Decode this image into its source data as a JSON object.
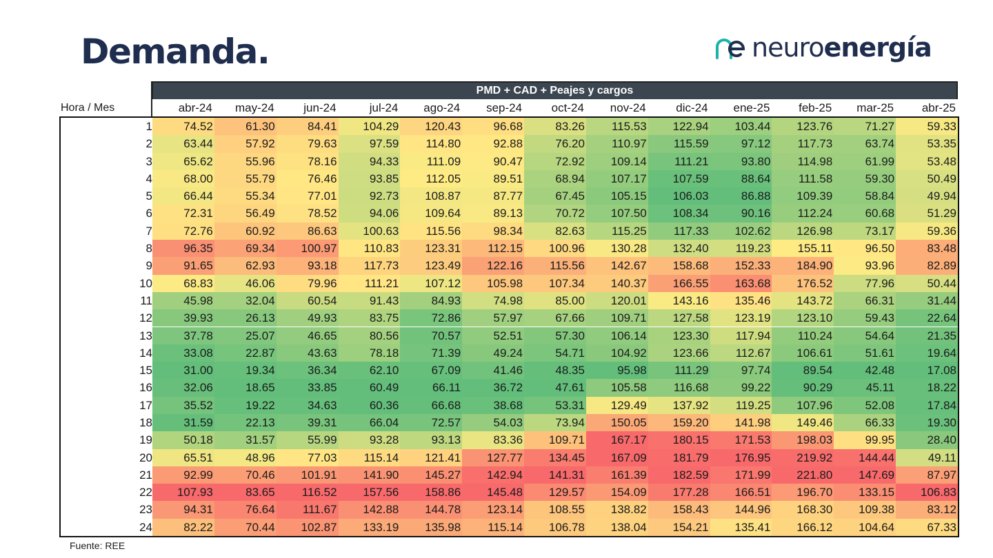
{
  "title": "Demanda.",
  "logo": {
    "text_light": "neuro",
    "text_bold": "energía",
    "icon": "neuroenergia-ne-logo-icon"
  },
  "header_band": "PMD + CAD + Peajes y cargos",
  "corner_label": "Hora / Mes",
  "source": "Fuente: REE",
  "colors": {
    "green": "#63be7b",
    "yellow": "#ffeb84",
    "red": "#f8696b",
    "band": "#3b4650",
    "title": "#1f2d4e",
    "logo_accent": "#1bb3a8"
  },
  "chart_data": {
    "type": "heatmap",
    "title": "PMD + CAD + Peajes y cargos",
    "xlabel": "Mes",
    "ylabel": "Hora",
    "color_scale": "per-month column: low = green, mid = yellow, high = red",
    "months": [
      "abr-24",
      "may-24",
      "jun-24",
      "jul-24",
      "ago-24",
      "sep-24",
      "oct-24",
      "nov-24",
      "dic-24",
      "ene-25",
      "feb-25",
      "mar-25",
      "abr-25"
    ],
    "hours": [
      1,
      2,
      3,
      4,
      5,
      6,
      7,
      8,
      9,
      10,
      11,
      12,
      13,
      14,
      15,
      16,
      17,
      18,
      19,
      20,
      21,
      22,
      23,
      24
    ],
    "values": [
      [
        74.52,
        61.3,
        84.41,
        104.29,
        120.43,
        96.68,
        83.26,
        115.53,
        122.94,
        103.44,
        123.76,
        71.27,
        59.33
      ],
      [
        63.44,
        57.92,
        79.63,
        97.59,
        114.8,
        92.88,
        76.2,
        110.97,
        115.59,
        97.12,
        117.73,
        63.74,
        53.35
      ],
      [
        65.62,
        55.96,
        78.16,
        94.33,
        111.09,
        90.47,
        72.92,
        109.14,
        111.21,
        93.8,
        114.98,
        61.99,
        53.48
      ],
      [
        68.0,
        55.79,
        76.46,
        93.85,
        112.05,
        89.51,
        68.94,
        107.17,
        107.59,
        88.64,
        111.58,
        59.3,
        50.49
      ],
      [
        66.44,
        55.34,
        77.01,
        92.73,
        108.87,
        87.77,
        67.45,
        105.15,
        106.03,
        86.88,
        109.39,
        58.84,
        49.94
      ],
      [
        72.31,
        56.49,
        78.52,
        94.06,
        109.64,
        89.13,
        70.72,
        107.5,
        108.34,
        90.16,
        112.24,
        60.68,
        51.29
      ],
      [
        72.76,
        60.92,
        86.63,
        100.63,
        115.56,
        98.34,
        82.63,
        115.25,
        117.33,
        102.62,
        126.98,
        73.17,
        59.36
      ],
      [
        96.35,
        69.34,
        100.97,
        110.83,
        123.31,
        112.15,
        100.96,
        130.28,
        132.4,
        119.23,
        155.11,
        96.5,
        83.48
      ],
      [
        91.65,
        62.93,
        93.18,
        117.73,
        123.49,
        122.16,
        115.56,
        142.67,
        158.68,
        152.33,
        184.9,
        93.96,
        82.89
      ],
      [
        68.83,
        46.06,
        79.96,
        111.21,
        107.12,
        105.98,
        107.34,
        140.37,
        166.55,
        163.68,
        176.52,
        77.96,
        50.44
      ],
      [
        45.98,
        32.04,
        60.54,
        91.43,
        84.93,
        74.98,
        85.0,
        120.01,
        143.16,
        135.46,
        143.72,
        66.31,
        31.44
      ],
      [
        39.93,
        26.13,
        49.93,
        83.75,
        72.86,
        57.97,
        67.66,
        109.71,
        127.58,
        123.19,
        123.1,
        59.43,
        22.64
      ],
      [
        37.78,
        25.07,
        46.65,
        80.56,
        70.57,
        52.51,
        57.3,
        106.14,
        123.3,
        117.94,
        110.24,
        54.64,
        21.35
      ],
      [
        33.08,
        22.87,
        43.63,
        78.18,
        71.39,
        49.24,
        54.71,
        104.92,
        123.66,
        112.67,
        106.61,
        51.61,
        19.64
      ],
      [
        31.0,
        19.34,
        36.34,
        62.1,
        67.09,
        41.46,
        48.35,
        95.98,
        111.29,
        97.74,
        89.54,
        42.48,
        17.08
      ],
      [
        32.06,
        18.65,
        33.85,
        60.49,
        66.11,
        36.72,
        47.61,
        105.58,
        116.68,
        99.22,
        90.29,
        45.11,
        18.22
      ],
      [
        35.52,
        19.22,
        34.63,
        60.36,
        66.68,
        38.68,
        53.31,
        129.49,
        137.92,
        119.25,
        107.96,
        52.08,
        17.84
      ],
      [
        31.59,
        22.13,
        39.31,
        66.04,
        72.57,
        54.03,
        73.94,
        150.05,
        159.2,
        141.98,
        149.46,
        66.33,
        19.3
      ],
      [
        50.18,
        31.57,
        55.99,
        93.28,
        93.13,
        83.36,
        109.71,
        167.17,
        180.15,
        171.53,
        198.03,
        99.95,
        28.4
      ],
      [
        65.51,
        48.96,
        77.03,
        115.14,
        121.41,
        127.77,
        134.45,
        167.09,
        181.79,
        176.95,
        219.92,
        144.44,
        49.11
      ],
      [
        92.99,
        70.46,
        101.91,
        141.9,
        145.27,
        142.94,
        141.31,
        161.39,
        182.59,
        171.99,
        221.8,
        147.69,
        87.97
      ],
      [
        107.93,
        83.65,
        116.52,
        157.56,
        158.86,
        145.48,
        129.57,
        154.09,
        177.28,
        166.51,
        196.7,
        133.15,
        106.83
      ],
      [
        94.31,
        76.64,
        111.67,
        142.88,
        144.78,
        123.14,
        108.55,
        138.82,
        158.43,
        144.96,
        168.3,
        109.38,
        83.12
      ],
      [
        82.22,
        70.44,
        102.87,
        133.19,
        135.98,
        115.14,
        106.78,
        138.04,
        154.21,
        135.41,
        166.12,
        104.64,
        67.33
      ]
    ]
  }
}
